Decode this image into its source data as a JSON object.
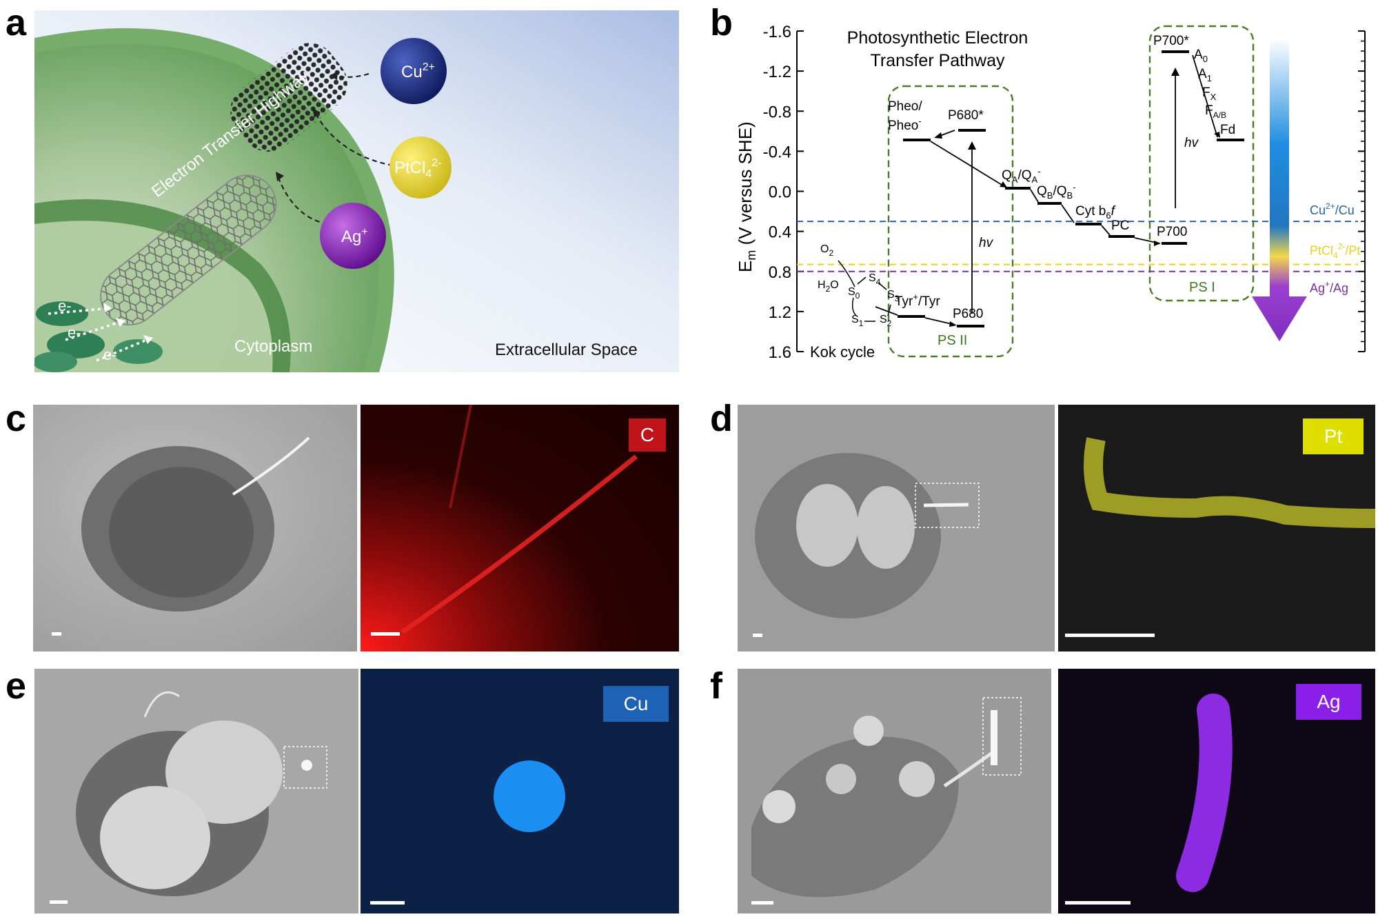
{
  "figure": {
    "panel_labels": {
      "a": "a",
      "b": "b",
      "c": "c",
      "d": "d",
      "e": "e",
      "f": "f"
    }
  },
  "panel_a": {
    "highway_label": "Electron Transfer Highway",
    "cytoplasm_label": "Cytoplasm",
    "extracellular_label": "Extracellular Space",
    "electron_label": "e-",
    "ions": [
      {
        "id": "cu",
        "base": "Cu",
        "sup": "2+",
        "color": "#1f2d7a"
      },
      {
        "id": "pt",
        "base": "PtCl",
        "sub": "4",
        "sup": "2-",
        "color": "#e8d93a"
      },
      {
        "id": "ag",
        "base": "Ag",
        "sup": "+",
        "color": "#8a22b8"
      }
    ]
  },
  "panel_b": {
    "title_line1": "Photosynthetic Electron",
    "title_line2": "Transfer Pathway",
    "y_axis_label_main": "E",
    "y_axis_label_sub": "m",
    "y_axis_label_rest": " (V versus SHE)",
    "y_ticks": [
      "-1.6",
      "-1.2",
      "-0.8",
      "-0.4",
      "0.0",
      "0.4",
      "0.8",
      "1.2",
      "1.6"
    ],
    "y_range": [
      -1.6,
      1.6
    ],
    "reverse_axis": true,
    "levels": {
      "pheo": "Pheo/",
      "pheo2": "Pheo",
      "p680star": "P680*",
      "qa": "Q",
      "qb": "Q",
      "cytb6f": "Cyt b",
      "pc": "PC",
      "p700": "P700",
      "p700star": "P700*",
      "a0": "A",
      "a1": "A",
      "fx": "F",
      "fab": "F",
      "fd": "Fd",
      "tyr": "Tyr",
      "p680": "P680",
      "h2o": "H",
      "o2": "O"
    },
    "hv": "hv",
    "psii_label": "PS II",
    "psi_label": "PS I",
    "kok_label": "Kok cycle",
    "redox_lines": [
      {
        "id": "cu",
        "label_base": "Cu",
        "sup": "2+",
        "rest": "/Cu",
        "potential": 0.3,
        "color": "#2a5fa0"
      },
      {
        "id": "pt",
        "label_base": "PtCl",
        "sub": "4",
        "sup": "2-",
        "rest": "/Pt",
        "potential": 0.73,
        "color": "#e6d21f"
      },
      {
        "id": "ag",
        "label_base": "Ag",
        "sup": "+",
        "rest": "/Ag",
        "potential": 0.8,
        "color": "#7a2fa6"
      }
    ]
  },
  "panel_c": {
    "element": "C",
    "badge_color": "#c0141a"
  },
  "panel_d": {
    "element": "Pt",
    "badge_color": "#dede00"
  },
  "panel_e": {
    "element": "Cu",
    "badge_color": "#1d62b5"
  },
  "panel_f": {
    "element": "Ag",
    "badge_color": "#8a1fe8"
  }
}
